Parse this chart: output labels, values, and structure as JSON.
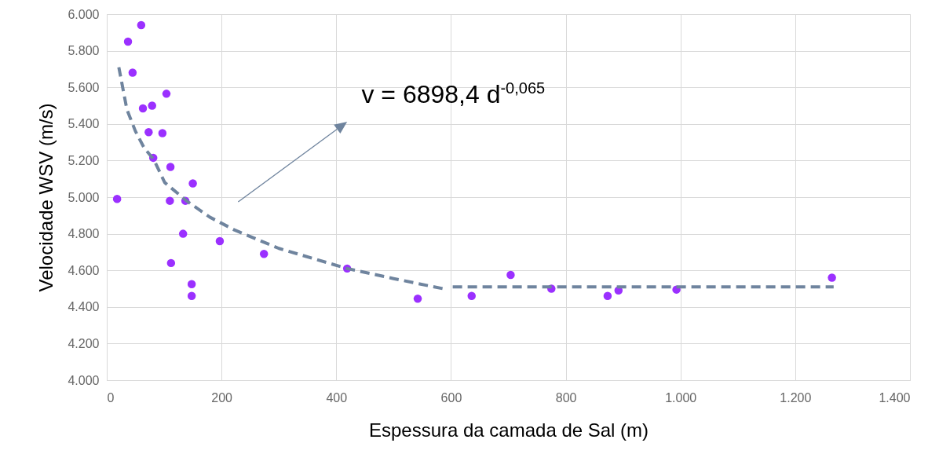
{
  "chart_data": {
    "type": "scatter",
    "xlabel": "Espessura da camada de Sal (m)",
    "ylabel": "Velocidade WSV (m/s)",
    "xlim": [
      0,
      1400
    ],
    "xticks": [
      0,
      200,
      400,
      600,
      800,
      {
        "value": 1000,
        "label": "1.000"
      },
      {
        "value": 1200,
        "label": "1.200"
      },
      {
        "value": 1400,
        "label": "1.400"
      }
    ],
    "ylim": [
      4000,
      6000
    ],
    "yticks": [
      {
        "value": 4000,
        "label": "4.000"
      },
      {
        "value": 4200,
        "label": "4.200"
      },
      {
        "value": 4400,
        "label": "4.400"
      },
      {
        "value": 4600,
        "label": "4.600"
      },
      {
        "value": 4800,
        "label": "4.800"
      },
      {
        "value": 5000,
        "label": "5.000"
      },
      {
        "value": 5200,
        "label": "5.200"
      },
      {
        "value": 5400,
        "label": "5.400"
      },
      {
        "value": 5600,
        "label": "5.600"
      },
      {
        "value": 5800,
        "label": "5.800"
      },
      {
        "value": 6000,
        "label": "6.000"
      }
    ],
    "grid": true,
    "annotations": [
      "v = 6898,4 d$^{-0,065}$"
    ],
    "series": [
      {
        "color": "#9b30ff",
        "marker": "circle",
        "x": [
          18,
          37,
          60,
          45,
          63,
          79,
          104,
          73,
          97,
          81,
          111,
          150,
          110,
          137,
          133,
          197,
          112,
          148,
          148,
          274,
          419,
          542,
          636,
          704,
          775,
          873,
          892,
          993,
          1264
        ],
        "values": [
          4990,
          5850,
          5940,
          5680,
          5485,
          5500,
          5565,
          5355,
          5350,
          5215,
          5165,
          5075,
          4980,
          4980,
          4800,
          4760,
          4640,
          4525,
          4460,
          4690,
          4610,
          4445,
          4460,
          4575,
          4500,
          4460,
          4490,
          4495,
          4560
        ]
      },
      {
        "type": "line",
        "color": "#6f849e",
        "marker": "none",
        "line_style": "dashed",
        "x": [
          21,
          35,
          50,
          65,
          82,
          101,
          141,
          180,
          223,
          300,
          419,
          500,
          586,
          595,
          603,
          1267
        ],
        "values": [
          5710,
          5480,
          5360,
          5270,
          5205,
          5080,
          4975,
          4890,
          4820,
          4720,
          4610,
          4555,
          4500,
          null,
          4510,
          4510
        ]
      }
    ]
  }
}
